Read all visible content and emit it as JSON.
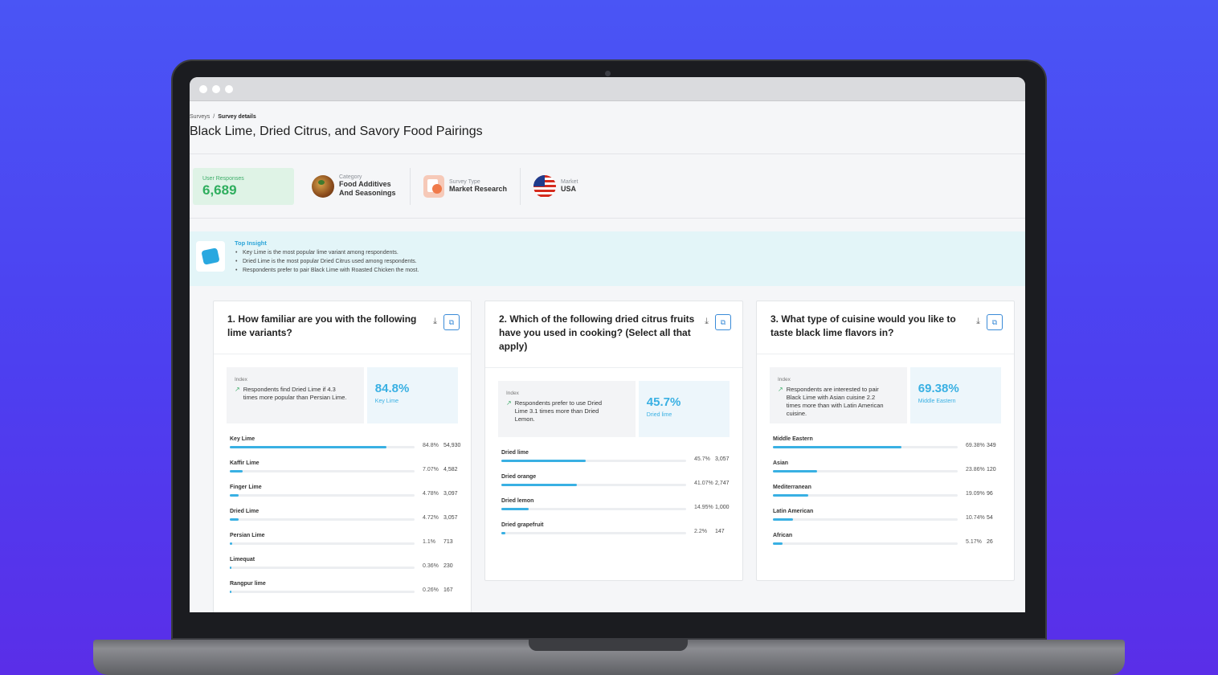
{
  "breadcrumb": {
    "root": "Surveys",
    "separator": "/",
    "current": "Survey details"
  },
  "page_title": "Black Lime, Dried Citrus, and Savory Food Pairings",
  "stats": {
    "user_responses_label": "User Responses",
    "user_responses_value": "6,689",
    "category_label": "Category",
    "category_value": "Food Additives And Seasonings",
    "survey_type_label": "Survey Type",
    "survey_type_value": "Market Research",
    "market_label": "Market",
    "market_value": "USA"
  },
  "insight": {
    "title": "Top Insight",
    "items": [
      "Key Lime is the most popular lime variant among respondents.",
      "Dried Lime is the most popular Dried Citrus used among respondents.",
      "Respondents prefer to pair Black Lime with Roasted Chicken the most."
    ]
  },
  "questions": [
    {
      "title": "1. How familiar are you with the following lime variants?",
      "index_label": "Index",
      "index_text": "Respondents find Dried Lime if 4.3 times more popular than Persian Lime.",
      "highlight_value": "84.8%",
      "highlight_caption": "Key Lime",
      "rows": [
        {
          "label": "Key Lime",
          "pct": "84.8%",
          "value": 84.8,
          "count": "54,930"
        },
        {
          "label": "Kaffir Lime",
          "pct": "7.07%",
          "value": 7.07,
          "count": "4,582"
        },
        {
          "label": "Finger Lime",
          "pct": "4.78%",
          "value": 4.78,
          "count": "3,097"
        },
        {
          "label": "Dried Lime",
          "pct": "4.72%",
          "value": 4.72,
          "count": "3,057"
        },
        {
          "label": "Persian Lime",
          "pct": "1.1%",
          "value": 1.1,
          "count": "713"
        },
        {
          "label": "Limequat",
          "pct": "0.36%",
          "value": 0.36,
          "count": "230"
        },
        {
          "label": "Rangpur lime",
          "pct": "0.26%",
          "value": 0.26,
          "count": "167"
        }
      ]
    },
    {
      "title": "2. Which of the following dried citrus fruits have you used in cooking? (Select all that apply)",
      "index_label": "Index",
      "index_text": "Respondents prefer to use Dried Lime 3.1 times more than Dried Lemon.",
      "highlight_value": "45.7%",
      "highlight_caption": "Dried lime",
      "rows": [
        {
          "label": "Dried lime",
          "pct": "45.7%",
          "value": 45.7,
          "count": "3,057"
        },
        {
          "label": "Dried orange",
          "pct": "41.07%",
          "value": 41.07,
          "count": "2,747"
        },
        {
          "label": "Dried lemon",
          "pct": "14.95%",
          "value": 14.95,
          "count": "1,000"
        },
        {
          "label": "Dried grapefruit",
          "pct": "2.2%",
          "value": 2.2,
          "count": "147"
        }
      ]
    },
    {
      "title": "3. What type of cuisine would you like to taste black lime flavors in?",
      "index_label": "Index",
      "index_text": "Respondents are interested to pair Black Lime with Asian cuisine 2.2 times more than with Latin American cuisine.",
      "highlight_value": "69.38%",
      "highlight_caption": "Middle Eastern",
      "rows": [
        {
          "label": "Middle Eastern",
          "pct": "69.38%",
          "value": 69.38,
          "count": "349"
        },
        {
          "label": "Asian",
          "pct": "23.86%",
          "value": 23.86,
          "count": "120"
        },
        {
          "label": "Mediterranean",
          "pct": "19.09%",
          "value": 19.09,
          "count": "96"
        },
        {
          "label": "Latin American",
          "pct": "10.74%",
          "value": 10.74,
          "count": "54"
        },
        {
          "label": "African",
          "pct": "5.17%",
          "value": 5.17,
          "count": "26"
        }
      ]
    }
  ],
  "icons": {
    "download": "download-icon",
    "export": "export-icon",
    "insight": "insight-icon",
    "trend": "trend-up-icon"
  },
  "colors": {
    "accent": "#39b0e3",
    "success": "#2fae5e",
    "background": "#4a4ff2"
  }
}
